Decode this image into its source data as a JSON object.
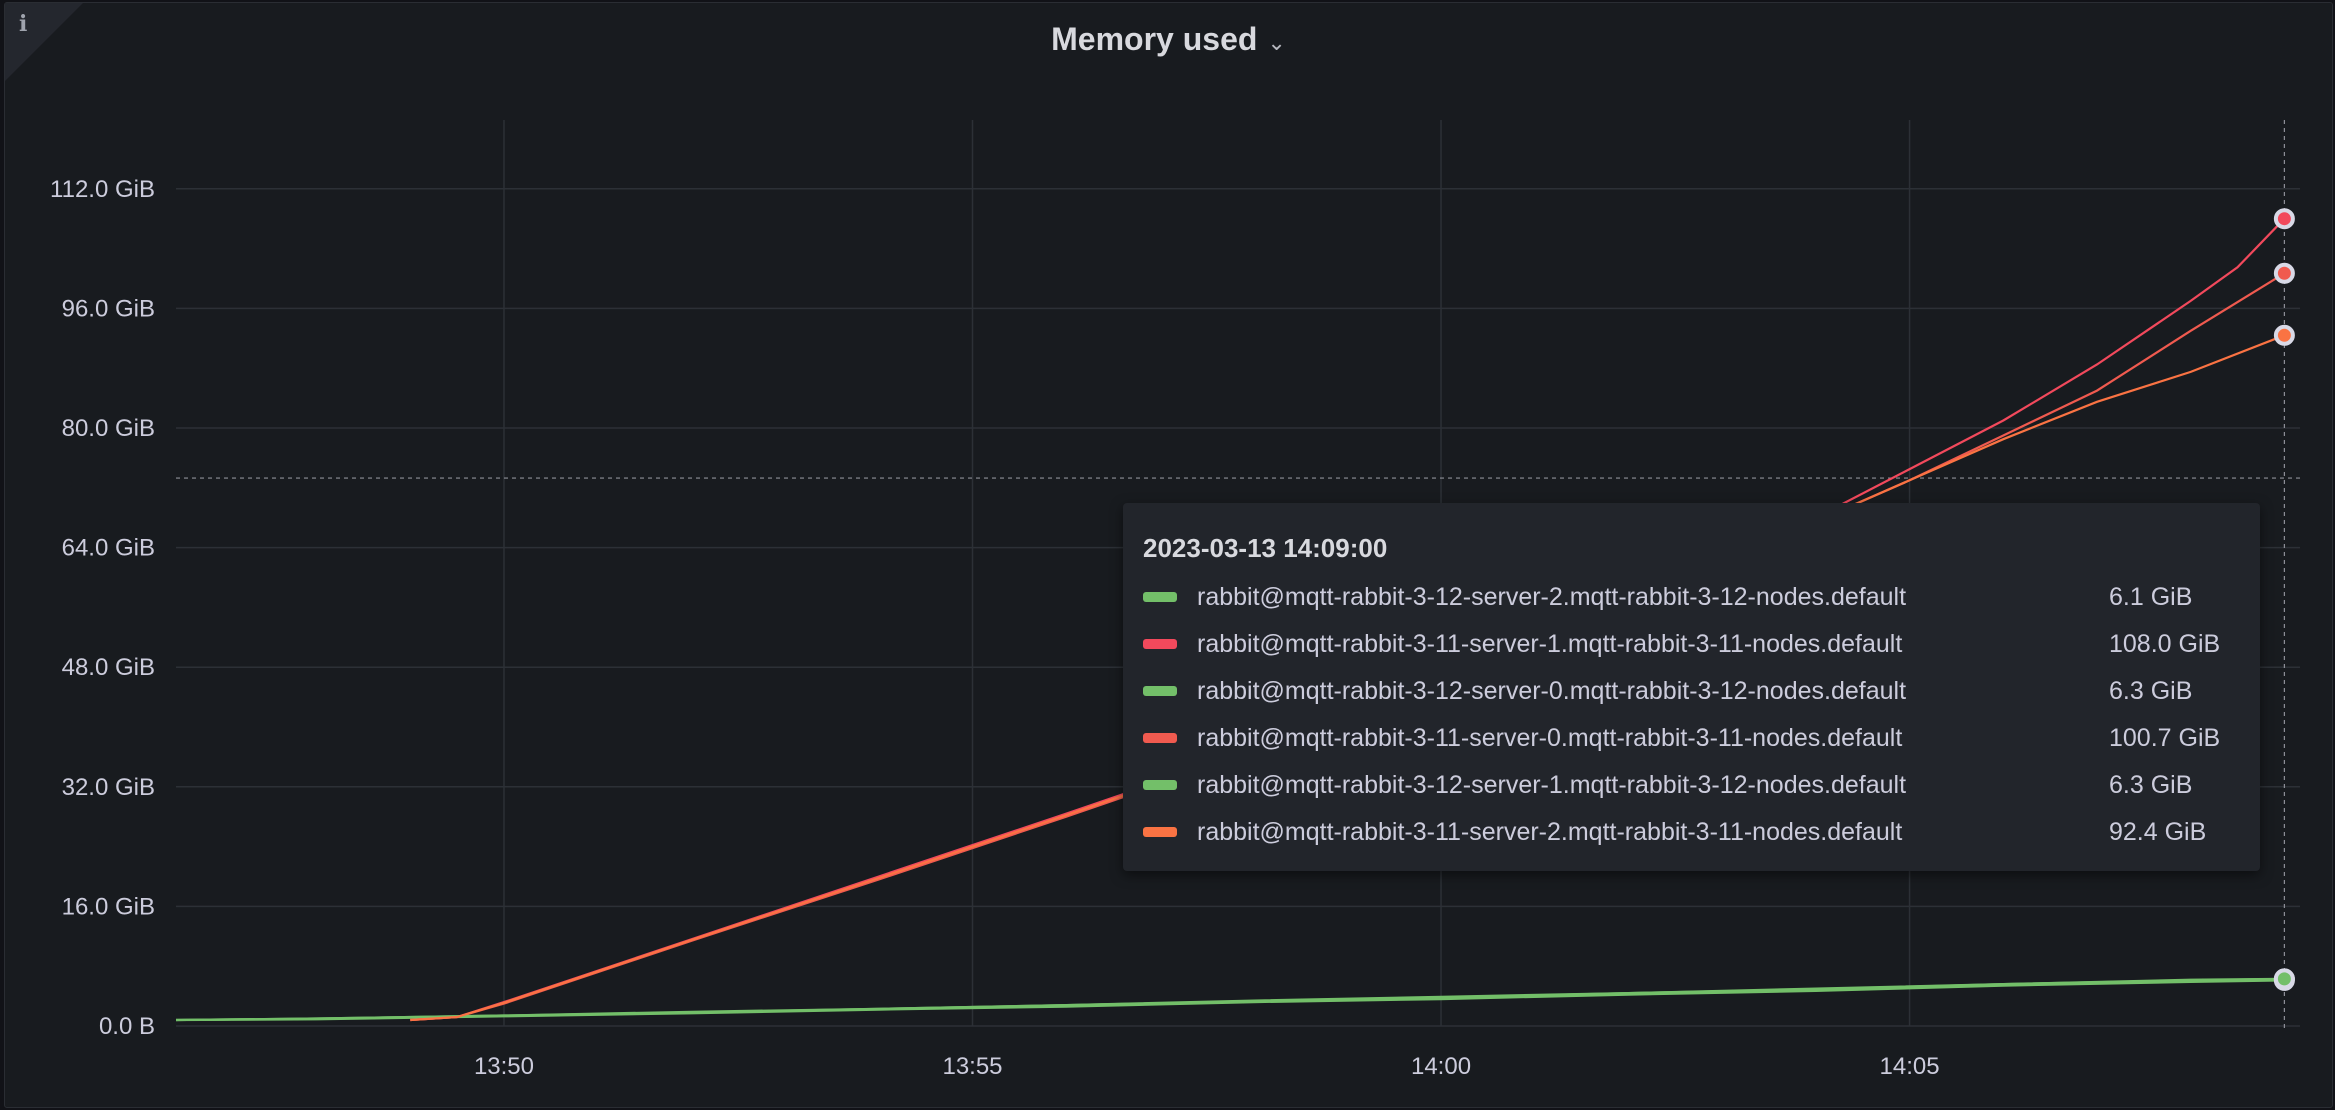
{
  "panel": {
    "title": "Memory used",
    "info_icon": "info-icon",
    "menu_icon": "chevron-down-icon"
  },
  "chart_data": {
    "type": "line",
    "title": "Memory used",
    "xlabel": "",
    "ylabel": "",
    "x_ticks": [
      "13:50",
      "13:55",
      "14:00",
      "14:05"
    ],
    "y_ticks": [
      "0.0 B",
      "16.0 GiB",
      "32.0 GiB",
      "48.0 GiB",
      "64.0 GiB",
      "80.0 GiB",
      "96.0 GiB",
      "112.0 GiB"
    ],
    "ylim": [
      0,
      120
    ],
    "xlim": [
      "13:46:30",
      "14:09:10"
    ],
    "grid": true,
    "unit": "GiB",
    "cursor": {
      "time": "14:09:00",
      "value": 73.3
    },
    "series": [
      {
        "name": "rabbit@mqtt-rabbit-3-12-server-2.mqtt-rabbit-3-12-nodes.default",
        "color": "#73bf69",
        "points": [
          [
            "13:46:30",
            0.8
          ],
          [
            "13:48",
            0.9
          ],
          [
            "13:50",
            1.3
          ],
          [
            "13:52",
            1.7
          ],
          [
            "13:54",
            2.2
          ],
          [
            "13:56",
            2.6
          ],
          [
            "13:58",
            3.2
          ],
          [
            "14:00",
            3.6
          ],
          [
            "14:02",
            4.2
          ],
          [
            "14:04",
            4.7
          ],
          [
            "14:06",
            5.4
          ],
          [
            "14:08",
            5.9
          ],
          [
            "14:09",
            6.1
          ]
        ]
      },
      {
        "name": "rabbit@mqtt-rabbit-3-11-server-1.mqtt-rabbit-3-11-nodes.default",
        "color": "#f2495c",
        "points": [
          [
            "13:49",
            0.8
          ],
          [
            "13:49:30",
            1.2
          ],
          [
            "13:50",
            3.2
          ],
          [
            "13:52",
            11.6
          ],
          [
            "13:54",
            20.0
          ],
          [
            "13:56",
            28.4
          ],
          [
            "13:58",
            37.0
          ],
          [
            "14:00",
            46.0
          ],
          [
            "14:02",
            56.5
          ],
          [
            "14:03",
            62.0
          ],
          [
            "14:04",
            68.0
          ],
          [
            "14:05",
            74.5
          ],
          [
            "14:06",
            81.0
          ],
          [
            "14:07",
            88.5
          ],
          [
            "14:08",
            97.0
          ],
          [
            "14:08:30",
            101.5
          ],
          [
            "14:09",
            108.0
          ]
        ]
      },
      {
        "name": "rabbit@mqtt-rabbit-3-12-server-0.mqtt-rabbit-3-12-nodes.default",
        "color": "#73bf69",
        "points": [
          [
            "13:46:30",
            0.8
          ],
          [
            "13:48",
            1.0
          ],
          [
            "13:50",
            1.4
          ],
          [
            "13:52",
            1.8
          ],
          [
            "13:54",
            2.3
          ],
          [
            "13:56",
            2.8
          ],
          [
            "13:58",
            3.3
          ],
          [
            "14:00",
            3.8
          ],
          [
            "14:02",
            4.4
          ],
          [
            "14:04",
            4.9
          ],
          [
            "14:06",
            5.6
          ],
          [
            "14:08",
            6.1
          ],
          [
            "14:09",
            6.3
          ]
        ]
      },
      {
        "name": "rabbit@mqtt-rabbit-3-11-server-0.mqtt-rabbit-3-11-nodes.default",
        "color": "#f05a4f",
        "points": [
          [
            "13:49",
            0.8
          ],
          [
            "13:49:30",
            1.2
          ],
          [
            "13:50",
            3.0
          ],
          [
            "13:52",
            11.4
          ],
          [
            "13:54",
            19.6
          ],
          [
            "13:56",
            28.0
          ],
          [
            "13:58",
            36.6
          ],
          [
            "14:00",
            45.6
          ],
          [
            "14:02",
            56.0
          ],
          [
            "14:03",
            61.6
          ],
          [
            "14:04",
            67.5
          ],
          [
            "14:05",
            73.0
          ],
          [
            "14:06",
            79.0
          ],
          [
            "14:07",
            85.0
          ],
          [
            "14:08",
            93.0
          ],
          [
            "14:09",
            100.7
          ]
        ]
      },
      {
        "name": "rabbit@mqtt-rabbit-3-12-server-1.mqtt-rabbit-3-12-nodes.default",
        "color": "#73bf69",
        "points": [
          [
            "13:46:30",
            0.8
          ],
          [
            "13:48",
            1.0
          ],
          [
            "13:50",
            1.4
          ],
          [
            "13:52",
            1.9
          ],
          [
            "13:54",
            2.3
          ],
          [
            "13:56",
            2.8
          ],
          [
            "13:58",
            3.4
          ],
          [
            "14:00",
            3.9
          ],
          [
            "14:02",
            4.4
          ],
          [
            "14:04",
            5.0
          ],
          [
            "14:06",
            5.6
          ],
          [
            "14:08",
            6.2
          ],
          [
            "14:09",
            6.3
          ]
        ]
      },
      {
        "name": "rabbit@mqtt-rabbit-3-11-server-2.mqtt-rabbit-3-11-nodes.default",
        "color": "#fa7343",
        "points": [
          [
            "13:49",
            0.8
          ],
          [
            "13:49:30",
            1.2
          ],
          [
            "13:50",
            3.1
          ],
          [
            "13:52",
            11.5
          ],
          [
            "13:54",
            19.8
          ],
          [
            "13:56",
            28.2
          ],
          [
            "13:58",
            36.8
          ],
          [
            "14:00",
            45.8
          ],
          [
            "14:02",
            56.2
          ],
          [
            "14:03",
            61.8
          ],
          [
            "14:04",
            67.5
          ],
          [
            "14:05",
            73.0
          ],
          [
            "14:06",
            78.5
          ],
          [
            "14:07",
            83.5
          ],
          [
            "14:08",
            87.5
          ],
          [
            "14:09",
            92.4
          ]
        ]
      }
    ]
  },
  "tooltip": {
    "time": "2023-03-13 14:09:00",
    "rows": [
      {
        "name": "rabbit@mqtt-rabbit-3-12-server-2.mqtt-rabbit-3-12-nodes.default",
        "value": "6.1 GiB",
        "color": "#73bf69"
      },
      {
        "name": "rabbit@mqtt-rabbit-3-11-server-1.mqtt-rabbit-3-11-nodes.default",
        "value": "108.0 GiB",
        "color": "#f2495c"
      },
      {
        "name": "rabbit@mqtt-rabbit-3-12-server-0.mqtt-rabbit-3-12-nodes.default",
        "value": "6.3 GiB",
        "color": "#73bf69"
      },
      {
        "name": "rabbit@mqtt-rabbit-3-11-server-0.mqtt-rabbit-3-11-nodes.default",
        "value": "100.7 GiB",
        "color": "#f05a4f"
      },
      {
        "name": "rabbit@mqtt-rabbit-3-12-server-1.mqtt-rabbit-3-12-nodes.default",
        "value": "6.3 GiB",
        "color": "#73bf69"
      },
      {
        "name": "rabbit@mqtt-rabbit-3-11-server-2.mqtt-rabbit-3-11-nodes.default",
        "value": "92.4 GiB",
        "color": "#fa7343"
      }
    ]
  }
}
